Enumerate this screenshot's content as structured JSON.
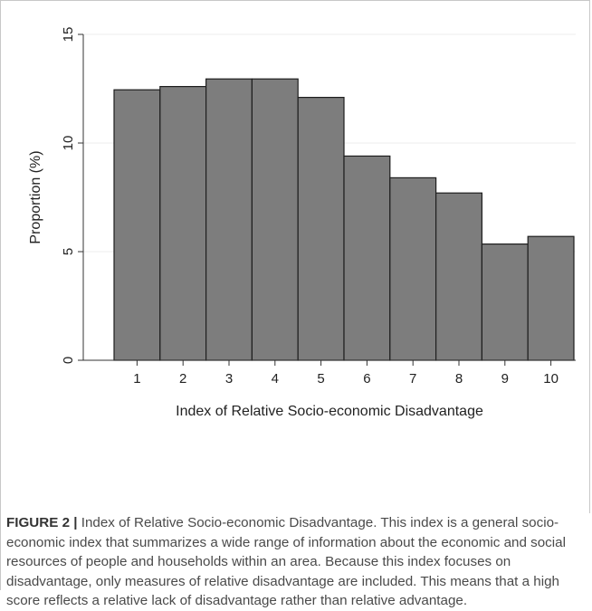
{
  "chart_data": {
    "type": "bar",
    "categories": [
      "1",
      "2",
      "3",
      "4",
      "5",
      "6",
      "7",
      "8",
      "9",
      "10"
    ],
    "values": [
      12.45,
      12.6,
      12.95,
      12.95,
      12.1,
      9.4,
      8.4,
      7.7,
      5.35,
      5.7
    ],
    "title": "",
    "xlabel": "Index of Relative Socio-economic Disadvantage",
    "ylabel": "Proportion (%)",
    "ylim": [
      0,
      15
    ],
    "yticks": [
      "0",
      "5",
      "10",
      "15"
    ],
    "grid": true,
    "bar_color": "#7d7d7d",
    "bar_edge_color": "#1e1e1e"
  },
  "caption": {
    "label": "FIGURE 2 |",
    "text": " Index of Relative Socio-economic Disadvantage. This index is a general socio-economic index that summarizes a wide range of information about the economic and social resources of people and households within an area. Because this index focuses on disadvantage, only measures of relative disadvantage are included. This means that a high score reflects a relative lack of disadvantage rather than relative advantage."
  }
}
